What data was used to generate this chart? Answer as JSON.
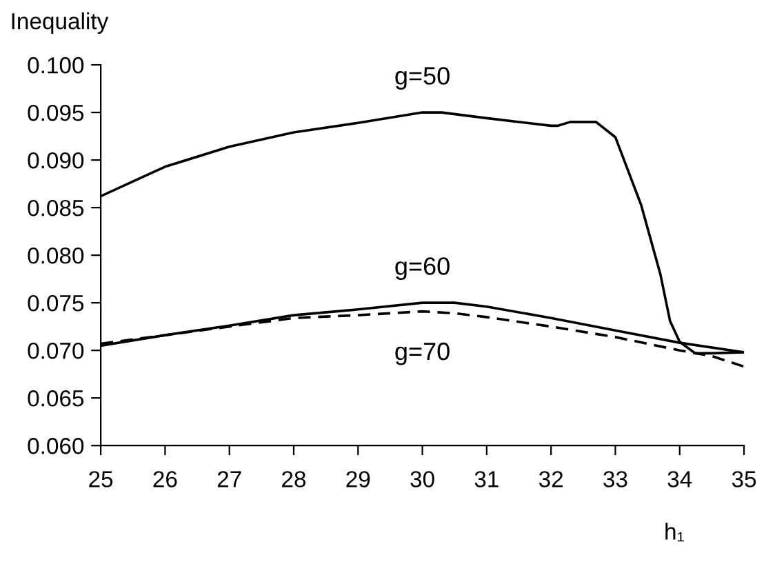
{
  "chart_data": {
    "type": "line",
    "ylabel": "Inequality",
    "xlabel": "h₁",
    "xlim": [
      25,
      35
    ],
    "xticks": [
      25,
      26,
      27,
      28,
      29,
      30,
      31,
      32,
      33,
      34,
      35
    ],
    "ylim": [
      0.06,
      0.1
    ],
    "yticks": [
      {
        "value": 0.06,
        "label": "0.060"
      },
      {
        "value": 0.065,
        "label": "0.065"
      },
      {
        "value": 0.07,
        "label": "0.070"
      },
      {
        "value": 0.075,
        "label": "0.075"
      },
      {
        "value": 0.08,
        "label": "0.080"
      },
      {
        "value": 0.085,
        "label": "0.085"
      },
      {
        "value": 0.09,
        "label": "0.090"
      },
      {
        "value": 0.095,
        "label": "0.095"
      },
      {
        "value": 0.1,
        "label": "0.100"
      }
    ],
    "grid": false,
    "legend": false,
    "marker": "none",
    "series": [
      {
        "name": "g=50",
        "color": "#000000",
        "line_style": "solid",
        "x": [
          25,
          26,
          27,
          28,
          29,
          30,
          30.3,
          31,
          32,
          32.1,
          32.3,
          32.7,
          33,
          33.4,
          33.7,
          33.85,
          34,
          34.24,
          34.5,
          35
        ],
        "values": [
          0.0862,
          0.0893,
          0.0914,
          0.0929,
          0.0939,
          0.095,
          0.095,
          0.0944,
          0.0936,
          0.0936,
          0.094,
          0.094,
          0.0924,
          0.0853,
          0.078,
          0.0731,
          0.0709,
          0.0697,
          0.0697,
          0.0698
        ]
      },
      {
        "name": "g=60",
        "color": "#000000",
        "line_style": "solid",
        "x": [
          25,
          26,
          27,
          28,
          29,
          30,
          30.5,
          31,
          32,
          33,
          34,
          35
        ],
        "values": [
          0.0705,
          0.0716,
          0.0726,
          0.0737,
          0.0743,
          0.075,
          0.075,
          0.0746,
          0.0734,
          0.0721,
          0.0708,
          0.0698
        ]
      },
      {
        "name": "g=70",
        "color": "#000000",
        "line_style": "dashed",
        "x": [
          25,
          26,
          27,
          28,
          29,
          30,
          30.5,
          31,
          32,
          33,
          34,
          34.5,
          35
        ],
        "values": [
          0.0707,
          0.0716,
          0.0725,
          0.0734,
          0.0737,
          0.0741,
          0.0739,
          0.0735,
          0.0725,
          0.0714,
          0.07,
          0.0694,
          0.0683
        ]
      }
    ]
  }
}
